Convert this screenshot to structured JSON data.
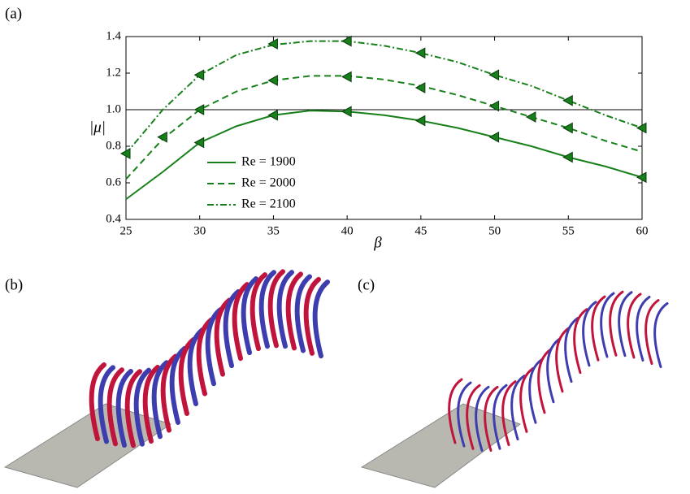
{
  "chart_data": {
    "type": "line",
    "title": "(a)",
    "xlabel": "β",
    "ylabel": "|μ|",
    "x": [
      25,
      27.5,
      30,
      32.5,
      35,
      37.5,
      40,
      42.5,
      45,
      47.5,
      50,
      52.5,
      55,
      57.5,
      60
    ],
    "series": [
      {
        "name": "Re = 1900",
        "color": "#17801a",
        "dash": "solid",
        "values": [
          0.51,
          0.66,
          0.82,
          0.91,
          0.97,
          0.995,
          0.99,
          0.97,
          0.94,
          0.9,
          0.85,
          0.8,
          0.74,
          0.69,
          0.63
        ],
        "marker_x": [
          30,
          35,
          40,
          45,
          50,
          55,
          60
        ],
        "marker_values": [
          0.82,
          0.97,
          0.99,
          0.94,
          0.85,
          0.74,
          0.63
        ]
      },
      {
        "name": "Re = 2000",
        "color": "#17801a",
        "dash": "dashed",
        "values": [
          0.62,
          0.84,
          1.0,
          1.1,
          1.16,
          1.185,
          1.185,
          1.165,
          1.13,
          1.08,
          1.02,
          0.96,
          0.9,
          0.83,
          0.77
        ],
        "marker_x": [
          27.5,
          30,
          35,
          40,
          45,
          50,
          52.5,
          55
        ],
        "marker_values": [
          0.85,
          1.0,
          1.16,
          1.18,
          1.12,
          1.02,
          0.96,
          0.9
        ]
      },
      {
        "name": "Re = 2100",
        "color": "#17801a",
        "dash": "dashdot",
        "values": [
          0.76,
          1.0,
          1.19,
          1.3,
          1.355,
          1.375,
          1.375,
          1.35,
          1.31,
          1.26,
          1.19,
          1.13,
          1.05,
          0.97,
          0.9
        ],
        "marker_x": [
          25,
          30,
          35,
          40,
          45,
          50,
          55,
          60
        ],
        "marker_values": [
          0.76,
          1.19,
          1.36,
          1.375,
          1.31,
          1.19,
          1.05,
          0.9
        ]
      }
    ],
    "hline": 1,
    "xlim": [
      25,
      60
    ],
    "xticks": [
      25,
      30,
      35,
      40,
      45,
      50,
      55,
      60
    ],
    "ylim": [
      0.4,
      1.4
    ],
    "yticks": [
      0.4,
      0.6,
      0.8,
      {
        "value": 1,
        "label": "1.0"
      },
      1.2,
      1.4
    ]
  },
  "panels": [
    {
      "label": "(b)"
    },
    {
      "label": "(c)"
    }
  ]
}
